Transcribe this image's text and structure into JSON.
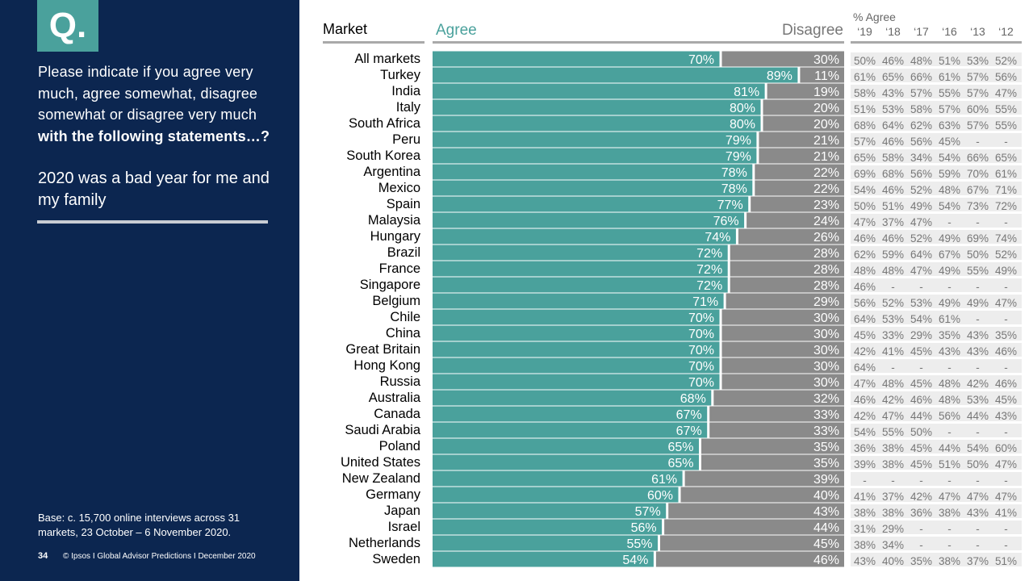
{
  "panel": {
    "badge": "Q.",
    "question_regular": "Please indicate if you agree very much, agree somewhat, disagree somewhat or disagree very much ",
    "question_bold": "with the following statements…?",
    "statement": "2020 was a bad year for me and my family",
    "base": "Base: c. 15,700 online interviews across 31 markets,  23 October – 6 November 2020.",
    "page_number": "34",
    "footer": "© Ipsos I Global Advisor Predictions I December 2020"
  },
  "headers": {
    "market": "Market",
    "agree": "Agree",
    "disagree": "Disagree",
    "pct_agree": "% Agree",
    "years": [
      "‘19",
      "‘18",
      "‘17",
      "‘16",
      "‘13",
      "‘12"
    ]
  },
  "colors": {
    "agree": "#4aa19c",
    "disagree": "#8a8a8a",
    "panel": "#0c2650",
    "history_row": "#ededed"
  },
  "chart_data": {
    "type": "bar",
    "stacked": true,
    "orientation": "horizontal",
    "categories": [
      "All markets",
      "Turkey",
      "India",
      "Italy",
      "South Africa",
      "Peru",
      "South Korea",
      "Argentina",
      "Mexico",
      "Spain",
      "Malaysia",
      "Hungary",
      "Brazil",
      "France",
      "Singapore",
      "Belgium",
      "Chile",
      "China",
      "Great Britain",
      "Hong Kong",
      "Russia",
      "Australia",
      "Canada",
      "Saudi Arabia",
      "Poland",
      "United States",
      "New Zealand",
      "Germany",
      "Japan",
      "Israel",
      "Netherlands",
      "Sweden"
    ],
    "series": [
      {
        "name": "Agree",
        "values": [
          70,
          89,
          81,
          80,
          80,
          79,
          79,
          78,
          78,
          77,
          76,
          74,
          72,
          72,
          72,
          71,
          70,
          70,
          70,
          70,
          70,
          68,
          67,
          67,
          65,
          65,
          61,
          60,
          57,
          56,
          55,
          54
        ]
      },
      {
        "name": "Disagree",
        "values": [
          30,
          11,
          19,
          20,
          20,
          21,
          21,
          22,
          22,
          23,
          24,
          26,
          28,
          28,
          28,
          29,
          30,
          30,
          30,
          30,
          30,
          32,
          33,
          33,
          35,
          35,
          39,
          40,
          43,
          44,
          45,
          46
        ]
      }
    ],
    "xlim": [
      0,
      100
    ],
    "table": {
      "title": "% Agree",
      "columns": [
        "‘19",
        "‘18",
        "‘17",
        "‘16",
        "‘13",
        "‘12"
      ],
      "rows": [
        [
          "50%",
          "46%",
          "48%",
          "51%",
          "53%",
          "52%"
        ],
        [
          "61%",
          "65%",
          "66%",
          "61%",
          "57%",
          "56%"
        ],
        [
          "58%",
          "43%",
          "57%",
          "55%",
          "57%",
          "47%"
        ],
        [
          "51%",
          "53%",
          "58%",
          "57%",
          "60%",
          "55%"
        ],
        [
          "68%",
          "64%",
          "62%",
          "63%",
          "57%",
          "55%"
        ],
        [
          "57%",
          "46%",
          "56%",
          "45%",
          "-",
          "-"
        ],
        [
          "65%",
          "58%",
          "34%",
          "54%",
          "66%",
          "65%"
        ],
        [
          "69%",
          "68%",
          "56%",
          "59%",
          "70%",
          "61%"
        ],
        [
          "54%",
          "46%",
          "52%",
          "48%",
          "67%",
          "71%"
        ],
        [
          "50%",
          "51%",
          "49%",
          "54%",
          "73%",
          "72%"
        ],
        [
          "47%",
          "37%",
          "47%",
          "-",
          "-",
          "-"
        ],
        [
          "46%",
          "46%",
          "52%",
          "49%",
          "69%",
          "74%"
        ],
        [
          "62%",
          "59%",
          "64%",
          "67%",
          "50%",
          "52%"
        ],
        [
          "48%",
          "48%",
          "47%",
          "49%",
          "55%",
          "49%"
        ],
        [
          "46%",
          "-",
          "-",
          "-",
          "-",
          "-"
        ],
        [
          "56%",
          "52%",
          "53%",
          "49%",
          "49%",
          "47%"
        ],
        [
          "64%",
          "53%",
          "54%",
          "61%",
          "-",
          "-"
        ],
        [
          "45%",
          "33%",
          "29%",
          "35%",
          "43%",
          "35%"
        ],
        [
          "42%",
          "41%",
          "45%",
          "43%",
          "43%",
          "46%"
        ],
        [
          "64%",
          "-",
          "-",
          "-",
          "-",
          "-"
        ],
        [
          "47%",
          "48%",
          "45%",
          "48%",
          "42%",
          "46%"
        ],
        [
          "46%",
          "42%",
          "46%",
          "48%",
          "53%",
          "45%"
        ],
        [
          "42%",
          "47%",
          "44%",
          "56%",
          "44%",
          "43%"
        ],
        [
          "54%",
          "55%",
          "50%",
          "-",
          "-",
          "-"
        ],
        [
          "36%",
          "38%",
          "45%",
          "44%",
          "54%",
          "60%"
        ],
        [
          "39%",
          "38%",
          "45%",
          "51%",
          "50%",
          "47%"
        ],
        [
          "-",
          "-",
          "-",
          "-",
          "-",
          "-"
        ],
        [
          "41%",
          "37%",
          "42%",
          "47%",
          "47%",
          "47%"
        ],
        [
          "38%",
          "38%",
          "36%",
          "38%",
          "43%",
          "41%"
        ],
        [
          "31%",
          "29%",
          "-",
          "-",
          "-",
          "-"
        ],
        [
          "38%",
          "34%",
          "-",
          "-",
          "-",
          "-"
        ],
        [
          "43%",
          "40%",
          "35%",
          "38%",
          "37%",
          "51%"
        ]
      ]
    }
  }
}
